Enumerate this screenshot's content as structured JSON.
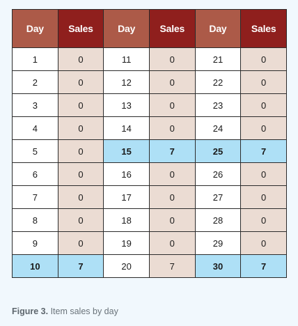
{
  "table": {
    "headers": [
      "Day",
      "Sales",
      "Day",
      "Sales",
      "Day",
      "Sales"
    ],
    "rows": [
      [
        {
          "v": "1"
        },
        {
          "v": "0"
        },
        {
          "v": "11"
        },
        {
          "v": "0"
        },
        {
          "v": "21"
        },
        {
          "v": "0"
        }
      ],
      [
        {
          "v": "2"
        },
        {
          "v": "0"
        },
        {
          "v": "12"
        },
        {
          "v": "0"
        },
        {
          "v": "22"
        },
        {
          "v": "0"
        }
      ],
      [
        {
          "v": "3"
        },
        {
          "v": "0"
        },
        {
          "v": "13"
        },
        {
          "v": "0"
        },
        {
          "v": "23"
        },
        {
          "v": "0"
        }
      ],
      [
        {
          "v": "4"
        },
        {
          "v": "0"
        },
        {
          "v": "14"
        },
        {
          "v": "0"
        },
        {
          "v": "24"
        },
        {
          "v": "0"
        }
      ],
      [
        {
          "v": "5"
        },
        {
          "v": "0"
        },
        {
          "v": "15",
          "hl": true
        },
        {
          "v": "7",
          "hl": true
        },
        {
          "v": "25",
          "hl": true
        },
        {
          "v": "7",
          "hl": true
        }
      ],
      [
        {
          "v": "6"
        },
        {
          "v": "0"
        },
        {
          "v": "16"
        },
        {
          "v": "0"
        },
        {
          "v": "26"
        },
        {
          "v": "0"
        }
      ],
      [
        {
          "v": "7"
        },
        {
          "v": "0"
        },
        {
          "v": "17"
        },
        {
          "v": "0"
        },
        {
          "v": "27"
        },
        {
          "v": "0"
        }
      ],
      [
        {
          "v": "8"
        },
        {
          "v": "0"
        },
        {
          "v": "18"
        },
        {
          "v": "0"
        },
        {
          "v": "28"
        },
        {
          "v": "0"
        }
      ],
      [
        {
          "v": "9"
        },
        {
          "v": "0"
        },
        {
          "v": "19"
        },
        {
          "v": "0"
        },
        {
          "v": "29"
        },
        {
          "v": "0"
        }
      ],
      [
        {
          "v": "10",
          "hl": true
        },
        {
          "v": "7",
          "hl": true
        },
        {
          "v": "20"
        },
        {
          "v": "7"
        },
        {
          "v": "30",
          "hl": true
        },
        {
          "v": "7",
          "hl": true
        }
      ]
    ]
  },
  "caption": {
    "label": "Figure 3.",
    "text": " Item sales by day"
  },
  "colors": {
    "day_header": "#ac5a48",
    "sales_header": "#8f1f1d",
    "sales_cell": "#ebdcd3",
    "highlight": "#aee0f6",
    "background": "#f1f8fd"
  }
}
